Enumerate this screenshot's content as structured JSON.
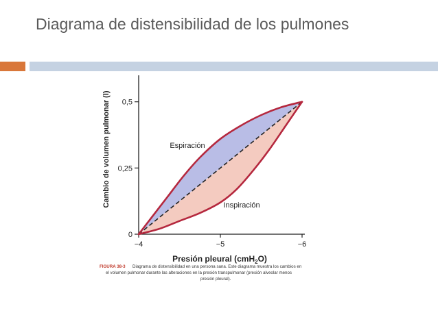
{
  "slide": {
    "title": "Diagrama de distensibilidad de los pulmones",
    "accent_color": "#d9773a",
    "bar_color": "#c5d2e2"
  },
  "chart_data": {
    "type": "line",
    "ylabel": "Cambio de volumen pulmonar (l)",
    "xlabel_main": "Presión pleural (cmH",
    "xlabel_sub": "2",
    "xlabel_end": "O)",
    "x_ticks": [
      "−4",
      "−5",
      "−6"
    ],
    "x_tick_values": [
      -4,
      -5,
      -6
    ],
    "y_ticks": [
      "0",
      "0,25",
      "0,5"
    ],
    "y_tick_values": [
      0,
      0.25,
      0.5
    ],
    "xlim": [
      -4,
      -6
    ],
    "ylim": [
      0,
      0.6
    ],
    "series": [
      {
        "name": "Espiración",
        "x": [
          -4,
          -4.15,
          -4.35,
          -4.55,
          -4.75,
          -5.0,
          -5.25,
          -5.5,
          -5.75,
          -6.0
        ],
        "y": [
          0,
          0.06,
          0.14,
          0.22,
          0.29,
          0.36,
          0.41,
          0.45,
          0.48,
          0.5
        ]
      },
      {
        "name": "Inspiración",
        "x": [
          -4,
          -4.25,
          -4.5,
          -4.75,
          -5.0,
          -5.2,
          -5.4,
          -5.6,
          -5.8,
          -6.0
        ],
        "y": [
          0,
          0.02,
          0.05,
          0.08,
          0.12,
          0.17,
          0.24,
          0.32,
          0.41,
          0.5
        ]
      },
      {
        "name": "",
        "style": "dashed",
        "x": [
          -4,
          -6
        ],
        "y": [
          0,
          0.5
        ]
      }
    ],
    "colors": {
      "curve": "#b5283e",
      "upper_fill": "#b9bde6",
      "lower_fill": "#f4cbc0",
      "dashed": "#222222",
      "caption_label": "#c0392b"
    },
    "caption_label": "FIGURA 38-3",
    "caption_lines": [
      "Diagrama de distensibilidad en una persona sana. Este diagrama muestra los cambios en",
      "el volumen pulmonar durante las alteraciones en la presión transpulmonar (presión alveolar menos",
      "presión pleural)."
    ]
  }
}
